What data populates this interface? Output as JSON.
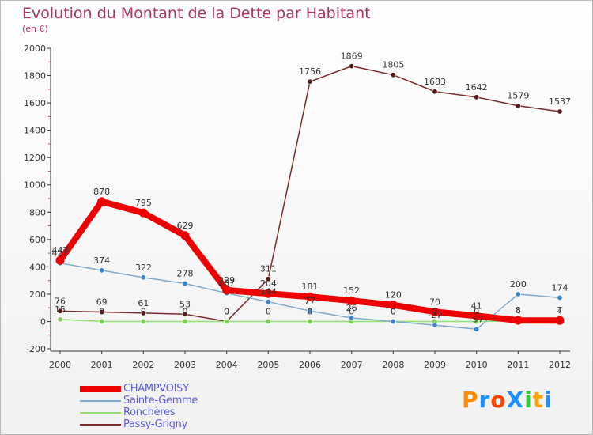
{
  "title": "Evolution du Montant de la Dette par Habitant",
  "subtitle": "(en €)",
  "logo": {
    "text": "ProXiti",
    "letters": [
      "P",
      "r",
      "o",
      "X",
      "i",
      "t",
      "i"
    ],
    "colors": [
      "#ff8c00",
      "#1e90ff",
      "#ff4500",
      "#1e90ff",
      "#32cd32",
      "#ffa500",
      "#1e90ff"
    ]
  },
  "chart_data": {
    "type": "line",
    "title": "Evolution du Montant de la Dette par Habitant",
    "ylabel": "(en €)",
    "xlabel": "",
    "x": [
      "2000",
      "2001",
      "2002",
      "2003",
      "2004",
      "2005",
      "2006",
      "2007",
      "2008",
      "2009",
      "2010",
      "2011",
      "2012"
    ],
    "ylim": [
      -200,
      2000
    ],
    "yticks": [
      "-200",
      "0",
      "200",
      "400",
      "600",
      "800",
      "1000",
      "1200",
      "1400",
      "1600",
      "1800",
      "2000"
    ],
    "grid": false,
    "legend_position": "bottom-left",
    "series": [
      {
        "name": "CHAMPVOISY",
        "color": "#ee0000",
        "point_color": "#ee0000",
        "emphasis": "thick",
        "values": [
          447,
          878,
          795,
          629,
          229,
          204,
          181,
          152,
          120,
          70,
          41,
          8,
          7
        ],
        "labels": [
          "447",
          "878",
          "795",
          "629",
          "229",
          "204",
          "181",
          "152",
          "120",
          "70",
          "41",
          "8",
          "7"
        ]
      },
      {
        "name": "Sainte-Gemme",
        "color": "#7fa8cc",
        "point_color": "#3a86c8",
        "emphasis": "thin",
        "values": [
          427,
          374,
          322,
          278,
          207,
          144,
          77,
          26,
          0,
          -27,
          -57,
          200,
          174
        ],
        "labels": [
          "427",
          "374",
          "322",
          "278",
          "207",
          "144",
          "77",
          "26",
          "0",
          "-27",
          "-57",
          "200",
          "174"
        ]
      },
      {
        "name": "Ronchères",
        "color": "#90e070",
        "point_color": "#7ad050",
        "emphasis": "thin",
        "values": [
          15,
          0,
          0,
          0,
          0,
          0,
          0,
          0,
          0,
          0,
          0,
          4,
          4
        ],
        "labels": [
          "15",
          "0",
          "0",
          "0",
          "0",
          "0",
          "0",
          "0",
          "0",
          "0",
          "0",
          "4",
          "4"
        ]
      },
      {
        "name": "Passy-Grigny",
        "color": "#7a2a2a",
        "point_color": "#5a1818",
        "emphasis": "thin",
        "values": [
          76,
          69,
          61,
          53,
          0,
          311,
          1756,
          1869,
          1805,
          1683,
          1642,
          1579,
          1537
        ],
        "labels": [
          "76",
          "69",
          "61",
          "53",
          "0",
          "311",
          "1756",
          "1869",
          "1805",
          "1683",
          "1642",
          "1579",
          "1537"
        ]
      }
    ]
  }
}
